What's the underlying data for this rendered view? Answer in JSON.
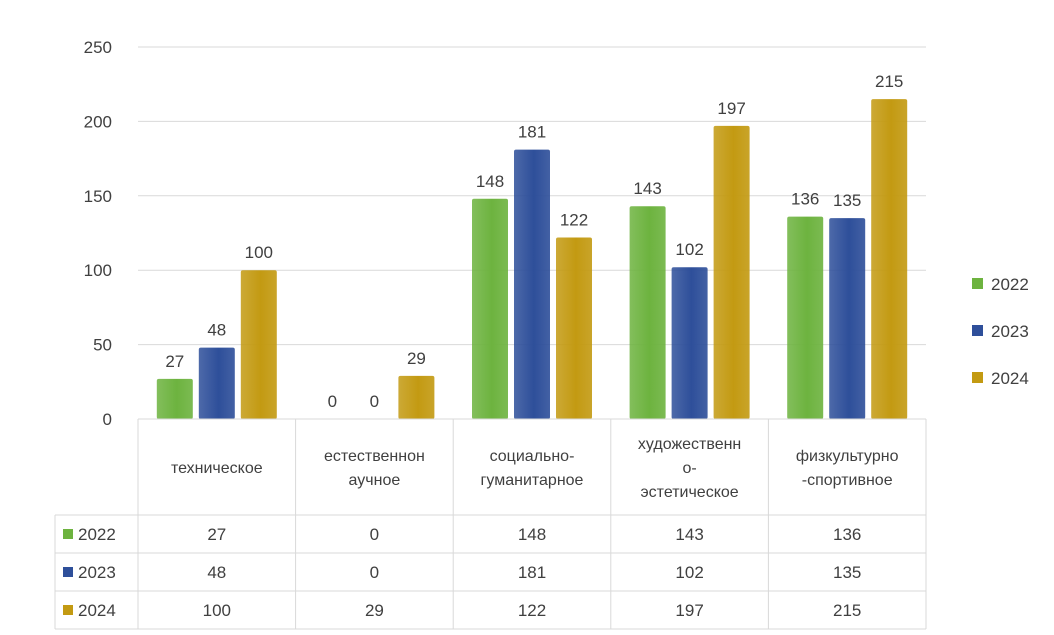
{
  "chart_data": {
    "type": "bar",
    "title": "",
    "xlabel": "",
    "ylabel": "",
    "ylim": [
      0,
      250
    ],
    "yticks": [
      0,
      50,
      100,
      150,
      200,
      250
    ],
    "grid": true,
    "legend_position": "right",
    "categories": [
      [
        "техническое"
      ],
      [
        "естественнон",
        "аучное"
      ],
      [
        "социально-",
        "гуманитарное"
      ],
      [
        "художественн",
        "о-",
        "эстетическое"
      ],
      [
        "физкультурно",
        "-спортивное"
      ]
    ],
    "series": [
      {
        "name": "2022",
        "color": "#6db33f",
        "values": [
          27,
          0,
          148,
          143,
          136
        ]
      },
      {
        "name": "2023",
        "color": "#2e4f9a",
        "values": [
          48,
          0,
          181,
          102,
          135
        ]
      },
      {
        "name": "2024",
        "color": "#c39a12",
        "values": [
          100,
          29,
          122,
          197,
          215
        ]
      }
    ],
    "data_table": true
  }
}
